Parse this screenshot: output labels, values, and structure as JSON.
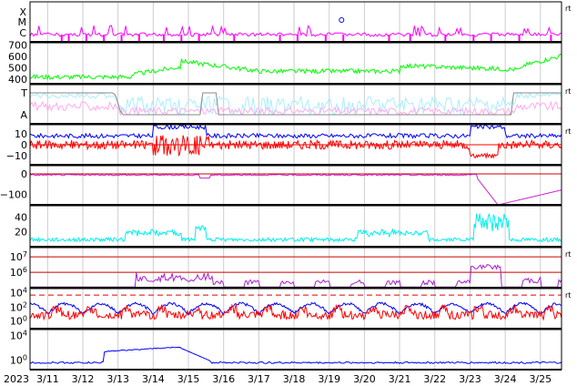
{
  "chart_data": [
    {
      "type": "line",
      "panel": "xray-flares",
      "y_labels": [
        "X",
        "M",
        "C"
      ],
      "series": [
        {
          "color": "#ff00ff"
        }
      ],
      "side_label": "rt"
    },
    {
      "type": "line",
      "panel": "f107-flux",
      "y_ticks": [
        400,
        500,
        600,
        700
      ],
      "ylim": [
        360,
        720
      ],
      "series": [
        {
          "color": "#00ff00"
        }
      ]
    },
    {
      "type": "line",
      "panel": "sector",
      "y_labels": [
        "T",
        "A"
      ],
      "series": [
        {
          "color": "#aaeeff"
        },
        {
          "color": "#ffaaee"
        },
        {
          "color": "#888888"
        }
      ],
      "side_label": "rt"
    },
    {
      "type": "line",
      "panel": "imf",
      "y_ticks": [
        -10,
        0,
        10
      ],
      "ylim": [
        -18,
        18
      ],
      "series": [
        {
          "color": "#0000ff"
        },
        {
          "color": "#ff0000"
        }
      ],
      "side_label": "rt"
    },
    {
      "type": "line",
      "panel": "dst",
      "y_ticks": [
        -100,
        0
      ],
      "ylim": [
        -150,
        40
      ],
      "series": [
        {
          "color": "#cc22cc"
        }
      ]
    },
    {
      "type": "line",
      "panel": "speed",
      "y_ticks": [
        20,
        40
      ],
      "ylim": [
        0,
        55
      ],
      "series": [
        {
          "color": "#00eeee"
        }
      ]
    },
    {
      "type": "line",
      "panel": "electron-flux",
      "y_ticks": [
        "10^6",
        "10^7"
      ],
      "log": true,
      "ylim": [
        5,
        7.6
      ],
      "series": [
        {
          "color": "#aa22cc"
        }
      ],
      "side_label": "rt"
    },
    {
      "type": "line",
      "panel": "proton-flux",
      "y_ticks": [
        "10^0",
        "10^2",
        "10^4"
      ],
      "log": true,
      "ylim": [
        -1,
        4.6
      ],
      "series": [
        {
          "color": "#0000ff"
        },
        {
          "color": "#ff0000"
        }
      ],
      "side_label": "rt"
    },
    {
      "type": "line",
      "panel": "proton-flux-2",
      "y_ticks": [
        "10^0",
        "10^4"
      ],
      "log": true,
      "ylim": [
        -1.6,
        5
      ],
      "series": [
        {
          "color": "#0000ff"
        }
      ]
    }
  ],
  "x_axis": {
    "year_label": "2023",
    "tick_labels": [
      "3/11",
      "3/12",
      "3/13",
      "3/14",
      "3/15",
      "3/16",
      "3/17",
      "3/18",
      "3/19",
      "3/20",
      "3/21",
      "3/22",
      "3/23",
      "3/24",
      "3/25"
    ],
    "range_days": [
      10.5,
      25.6
    ]
  }
}
